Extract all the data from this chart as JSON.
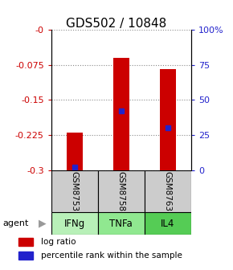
{
  "title": "GDS502 / 10848",
  "samples": [
    "GSM8753",
    "GSM8758",
    "GSM8763"
  ],
  "agents": [
    "IFNg",
    "TNFa",
    "IL4"
  ],
  "log_ratios": [
    -0.22,
    -0.06,
    -0.085
  ],
  "percentile_ranks": [
    0.02,
    0.42,
    0.3
  ],
  "bar_color": "#cc0000",
  "marker_color": "#2222cc",
  "ylim_min": -0.3,
  "ylim_max": 0.0,
  "left_yticks": [
    0,
    -0.075,
    -0.15,
    -0.225,
    -0.3
  ],
  "left_yticklabels": [
    "-0",
    "-0.075",
    "-0.15",
    "-0.225",
    "-0.3"
  ],
  "right_yticklabels": [
    "100%",
    "75",
    "50",
    "25",
    "0"
  ],
  "sample_bg": "#cccccc",
  "agent_colors": [
    "#b8f0b8",
    "#90e890",
    "#55cc55"
  ],
  "legend_bar_color": "#cc0000",
  "legend_marker_color": "#2222cc",
  "title_fontsize": 11,
  "tick_fontsize": 8,
  "bar_width": 0.35
}
